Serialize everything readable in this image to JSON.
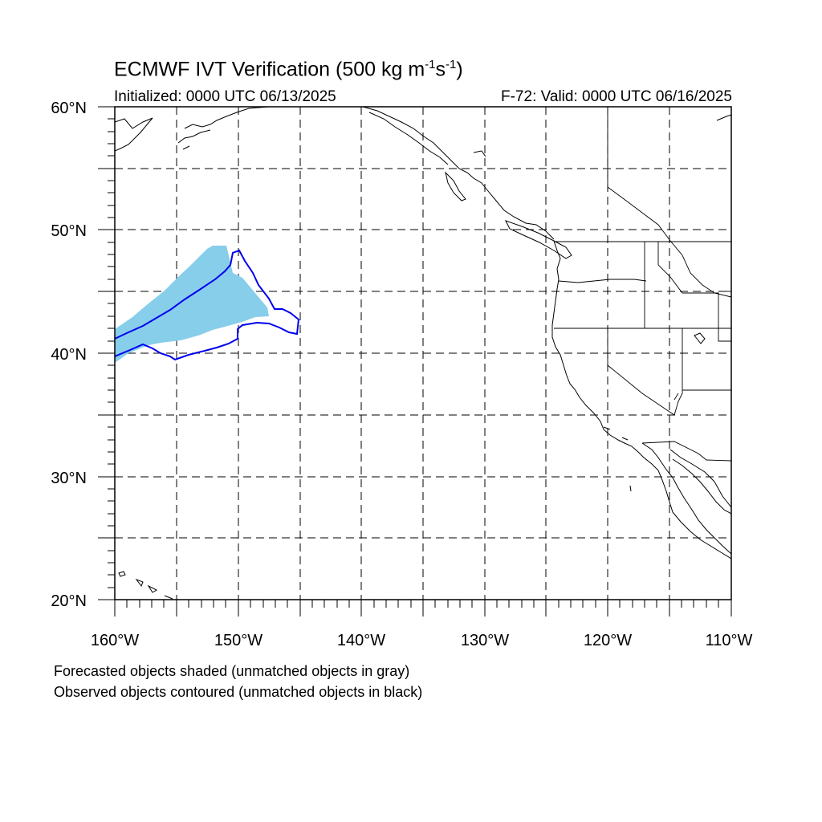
{
  "title": {
    "main": "ECMWF IVT Verification (500 kg m",
    "exp1": "-1",
    "mid": "s",
    "exp2": "-1",
    "end": ")"
  },
  "subtitle_left": "Initialized: 0000 UTC 06/13/2025",
  "subtitle_right": "F-72: Valid: 0000 UTC 06/16/2025",
  "map": {
    "lon_range": [
      -160,
      -110
    ],
    "lat_range": [
      20,
      60
    ],
    "grid_style": "dashed",
    "lat_labels": [
      "20°N",
      "30°N",
      "40°N",
      "50°N",
      "60°N"
    ],
    "lon_labels": [
      "160°W",
      "150°W",
      "140°W",
      "130°W",
      "120°W",
      "110°W"
    ]
  },
  "objects": {
    "forecast_fill_color": "#87ceeb",
    "observed_contour_color": "#0000ee"
  },
  "footnotes": [
    "Forecasted objects shaded (unmatched objects in gray)",
    "Observed objects contoured (unmatched objects in black)"
  ]
}
